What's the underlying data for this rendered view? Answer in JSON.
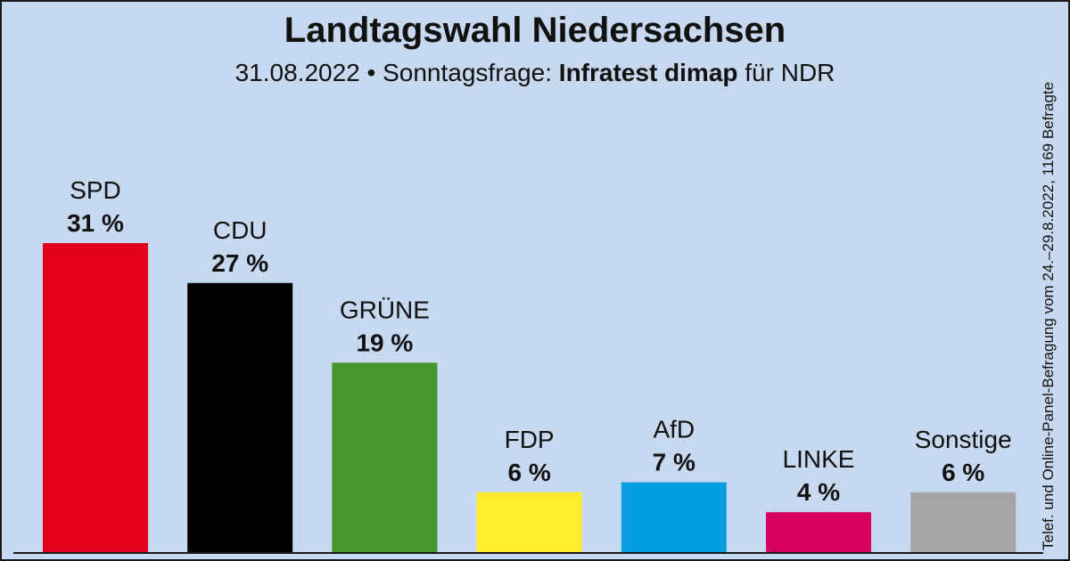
{
  "header": {
    "title": "Landtagswahl Niedersachsen",
    "subtitle_prefix": "31.08.2022 • Sonntagsfrage:",
    "institute": "Infratest dimap",
    "subtitle_suffix": "für NDR"
  },
  "side_note": "Telef. und Online-Panel-Befragung vom 24.–29.8.2022, 1169 Befragte",
  "colors": {
    "background": "#c6d9f0",
    "SPD": "#e3001b",
    "CDU": "#000000",
    "GRÜNE": "#46962b",
    "FDP": "#ffed2e",
    "AfD": "#009ee0",
    "LINKE": "#d4005b",
    "Sonstige": "#a6a6a6"
  },
  "chart_data": {
    "type": "bar",
    "categories": [
      "SPD",
      "CDU",
      "GRÜNE",
      "FDP",
      "AfD",
      "LINKE",
      "Sonstige"
    ],
    "values": [
      31,
      27,
      19,
      6,
      7,
      4,
      6
    ],
    "value_labels": [
      "31 %",
      "27 %",
      "19 %",
      "6 %",
      "7 %",
      "4 %",
      "6 %"
    ],
    "unit": "%",
    "ylim": [
      0,
      31
    ],
    "grid": false,
    "legend": "none"
  }
}
